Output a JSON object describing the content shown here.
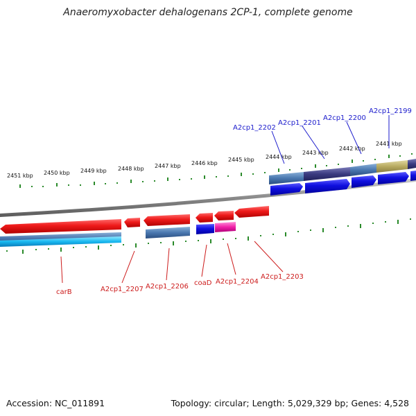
{
  "title": "Anaeromyxobacter dehalogenans 2CP-1, complete genome",
  "footer": {
    "accession": "Accession: NC_011891",
    "summary": "Topology: circular; Length: 5,029,329 bp; Genes: 4,528"
  },
  "scale_labels": [
    "2451 kbp",
    "2450 kbp",
    "2449 kbp",
    "2448 kbp",
    "2447 kbp",
    "2446 kbp",
    "2445 kbp",
    "2444 kbp",
    "2443 kbp",
    "2442 kbp",
    "2441 kbp"
  ],
  "gene_labels_top": [
    "A2cp1_2202",
    "A2cp1_2201",
    "A2cp1_2200",
    "A2cp1_2199"
  ],
  "gene_labels_bottom": [
    "carB",
    "A2cp1_2207",
    "A2cp1_2206",
    "coaD",
    "A2cp1_2204",
    "A2cp1_2203"
  ],
  "colors": {
    "forward_cds": "#1010e0",
    "reverse_cds": "#e01010",
    "backbone": "#888888",
    "tick": "#2a8a2a",
    "label_blue": "#1a1acc",
    "label_red": "#cc1a1a"
  }
}
